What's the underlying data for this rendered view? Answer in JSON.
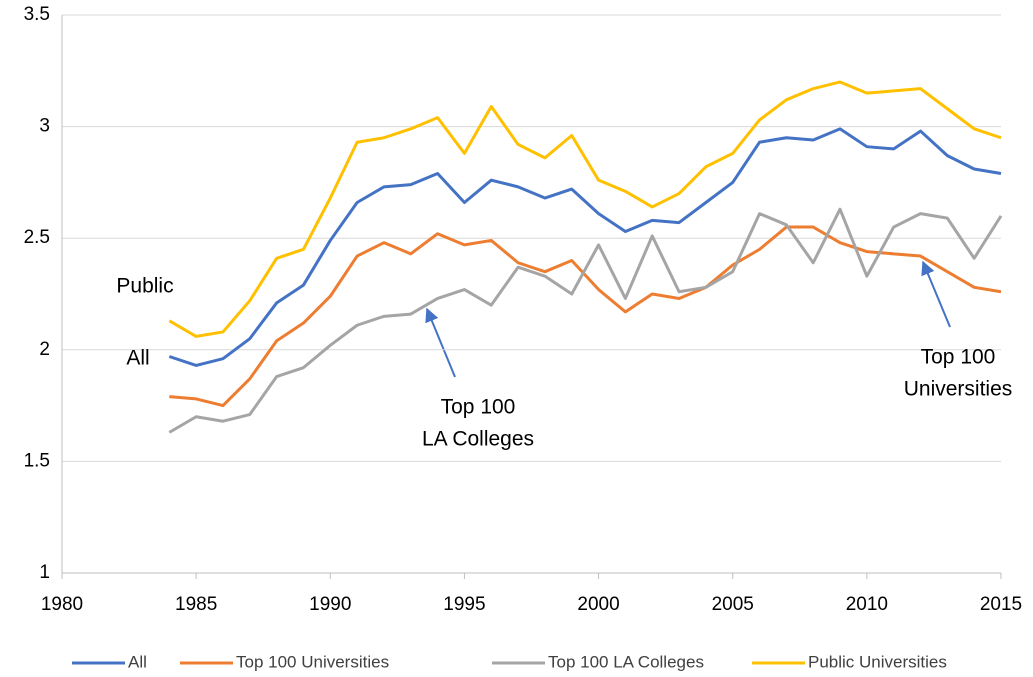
{
  "chart_data": {
    "type": "line",
    "x": [
      1984,
      1985,
      1986,
      1987,
      1988,
      1989,
      1990,
      1991,
      1992,
      1993,
      1994,
      1995,
      1996,
      1997,
      1998,
      1999,
      2000,
      2001,
      2002,
      2003,
      2004,
      2005,
      2006,
      2007,
      2008,
      2009,
      2010,
      2011,
      2012,
      2013,
      2014,
      2015
    ],
    "series": [
      {
        "name": "All",
        "color": "#4472c4",
        "values": [
          1.97,
          1.93,
          1.96,
          2.05,
          2.21,
          2.29,
          2.49,
          2.66,
          2.73,
          2.74,
          2.79,
          2.66,
          2.76,
          2.73,
          2.68,
          2.72,
          2.61,
          2.53,
          2.58,
          2.57,
          2.66,
          2.75,
          2.93,
          2.95,
          2.94,
          2.99,
          2.91,
          2.9,
          2.98,
          2.87,
          2.81,
          2.79
        ]
      },
      {
        "name": "Top 100 Universities",
        "color": "#ed7d31",
        "values": [
          1.79,
          1.78,
          1.75,
          1.87,
          2.04,
          2.12,
          2.24,
          2.42,
          2.48,
          2.43,
          2.52,
          2.47,
          2.49,
          2.39,
          2.35,
          2.4,
          2.27,
          2.17,
          2.25,
          2.23,
          2.28,
          2.38,
          2.45,
          2.55,
          2.55,
          2.48,
          2.44,
          2.43,
          2.42,
          2.35,
          2.28,
          2.26
        ]
      },
      {
        "name": "Top 100 LA Colleges",
        "color": "#a5a5a5",
        "values": [
          1.63,
          1.7,
          1.68,
          1.71,
          1.88,
          1.92,
          2.02,
          2.11,
          2.15,
          2.16,
          2.23,
          2.27,
          2.2,
          2.37,
          2.33,
          2.25,
          2.47,
          2.23,
          2.51,
          2.26,
          2.28,
          2.35,
          2.61,
          2.56,
          2.39,
          2.63,
          2.33,
          2.55,
          2.61,
          2.59,
          2.41,
          2.6
        ]
      },
      {
        "name": "Public Universities",
        "color": "#ffc000",
        "values": [
          2.13,
          2.06,
          2.08,
          2.22,
          2.41,
          2.45,
          2.68,
          2.93,
          2.95,
          2.99,
          3.04,
          2.88,
          3.09,
          2.92,
          2.86,
          2.96,
          2.76,
          2.71,
          2.64,
          2.7,
          2.82,
          2.88,
          3.03,
          3.12,
          3.17,
          3.2,
          3.15,
          3.16,
          3.17,
          3.08,
          2.99,
          2.95
        ]
      }
    ],
    "xlim": [
      1980,
      2015
    ],
    "xticks": [
      1980,
      1985,
      1990,
      1995,
      2000,
      2005,
      2010,
      2015
    ],
    "ylim": [
      1,
      3.5
    ],
    "yticks": [
      1,
      1.5,
      2,
      2.5,
      3,
      3.5
    ],
    "grid": true,
    "legend": "bottom",
    "annotations": [
      {
        "lines": [
          "Public"
        ]
      },
      {
        "lines": [
          "All"
        ]
      },
      {
        "lines": [
          "Top 100",
          "LA Colleges"
        ]
      },
      {
        "lines": [
          "Top 100",
          "Universities"
        ]
      }
    ]
  }
}
